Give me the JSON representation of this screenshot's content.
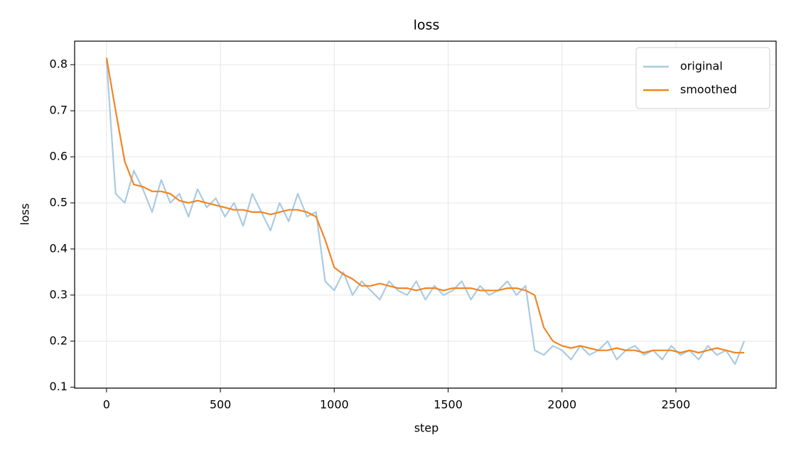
{
  "chart_data": {
    "type": "line",
    "title": "loss",
    "xlabel": "step",
    "ylabel": "loss",
    "x": [
      0,
      40,
      80,
      120,
      160,
      200,
      240,
      280,
      320,
      360,
      400,
      440,
      480,
      520,
      560,
      600,
      640,
      680,
      720,
      760,
      800,
      840,
      880,
      920,
      960,
      1000,
      1040,
      1080,
      1120,
      1160,
      1200,
      1240,
      1280,
      1320,
      1360,
      1400,
      1440,
      1480,
      1520,
      1560,
      1600,
      1640,
      1680,
      1720,
      1760,
      1800,
      1840,
      1880,
      1920,
      1960,
      2000,
      2040,
      2080,
      2120,
      2160,
      2200,
      2240,
      2280,
      2320,
      2360,
      2400,
      2440,
      2480,
      2520,
      2560,
      2600,
      2640,
      2680,
      2720,
      2760,
      2800
    ],
    "series": [
      {
        "name": "original",
        "color": "#a9cbe2",
        "values": [
          0.81,
          0.52,
          0.5,
          0.57,
          0.53,
          0.48,
          0.55,
          0.5,
          0.52,
          0.47,
          0.53,
          0.49,
          0.51,
          0.47,
          0.5,
          0.45,
          0.52,
          0.48,
          0.44,
          0.5,
          0.46,
          0.52,
          0.47,
          0.48,
          0.33,
          0.31,
          0.35,
          0.3,
          0.33,
          0.31,
          0.29,
          0.33,
          0.31,
          0.3,
          0.33,
          0.29,
          0.32,
          0.3,
          0.31,
          0.33,
          0.29,
          0.32,
          0.3,
          0.31,
          0.33,
          0.3,
          0.32,
          0.18,
          0.17,
          0.19,
          0.18,
          0.16,
          0.19,
          0.17,
          0.18,
          0.2,
          0.16,
          0.18,
          0.19,
          0.17,
          0.18,
          0.16,
          0.19,
          0.17,
          0.18,
          0.16,
          0.19,
          0.17,
          0.18,
          0.15,
          0.2
        ]
      },
      {
        "name": "smoothed",
        "color": "#f28522",
        "values": [
          0.815,
          0.7,
          0.59,
          0.54,
          0.535,
          0.525,
          0.525,
          0.52,
          0.505,
          0.5,
          0.505,
          0.5,
          0.495,
          0.49,
          0.485,
          0.485,
          0.48,
          0.48,
          0.475,
          0.48,
          0.485,
          0.485,
          0.48,
          0.47,
          0.42,
          0.36,
          0.345,
          0.335,
          0.32,
          0.32,
          0.325,
          0.32,
          0.315,
          0.315,
          0.31,
          0.315,
          0.315,
          0.31,
          0.315,
          0.315,
          0.315,
          0.31,
          0.31,
          0.31,
          0.315,
          0.315,
          0.31,
          0.3,
          0.23,
          0.2,
          0.19,
          0.185,
          0.19,
          0.185,
          0.18,
          0.18,
          0.185,
          0.18,
          0.18,
          0.175,
          0.18,
          0.18,
          0.18,
          0.175,
          0.18,
          0.175,
          0.18,
          0.185,
          0.18,
          0.175,
          0.175
        ]
      }
    ],
    "xlim": [
      -140,
      2940
    ],
    "ylim": [
      0.098,
      0.851
    ],
    "xticks": [
      0,
      500,
      1000,
      1500,
      2000,
      2500
    ],
    "yticks": [
      0.1,
      0.2,
      0.3,
      0.4,
      0.5,
      0.6,
      0.7,
      0.8
    ],
    "grid": true,
    "legend": "upper right"
  }
}
